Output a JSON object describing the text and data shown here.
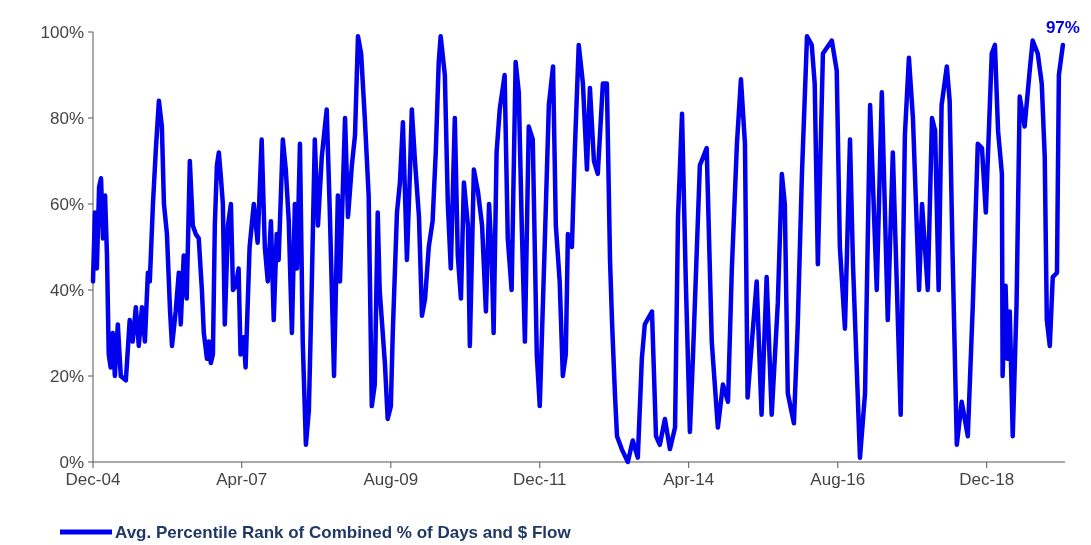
{
  "chart_data": {
    "type": "line",
    "legend": "bottom left",
    "grid": false,
    "line_style": "solid",
    "marker": "none",
    "xlim": [
      "2004-12",
      "2020-02-22"
    ],
    "xticks": [
      {
        "value": "2004-12",
        "label": "Dec-04"
      },
      {
        "value": "2007-04",
        "label": "Apr-07"
      },
      {
        "value": "2009-08",
        "label": "Aug-09"
      },
      {
        "value": "2011-12",
        "label": "Dec-11"
      },
      {
        "value": "2014-04",
        "label": "Apr-14"
      },
      {
        "value": "2016-08",
        "label": "Aug-16"
      },
      {
        "value": "2018-12",
        "label": "Dec-18"
      }
    ],
    "ylim": [
      0,
      100
    ],
    "yticks": [
      {
        "value": 0,
        "label": "0%"
      },
      {
        "value": 20,
        "label": "20%"
      },
      {
        "value": 40,
        "label": "40%"
      },
      {
        "value": 60,
        "label": "60%"
      },
      {
        "value": 80,
        "label": "80%"
      },
      {
        "value": 100,
        "label": "100%"
      }
    ],
    "annotations": [
      {
        "text": "97%",
        "x": "2020-02-10",
        "y": 97
      }
    ],
    "series": [
      {
        "name": "Avg. Percentile Rank of Combined % of Days and $ Flow",
        "color": "#0000ee",
        "x": [
          "2004-12-01",
          "2004-12-12",
          "2004-12-23",
          "2005-01-05",
          "2005-01-16",
          "2005-01-27",
          "2005-02-08",
          "2005-02-19",
          "2005-03-01",
          "2005-03-12",
          "2005-03-24",
          "2005-04-05",
          "2005-04-22",
          "2005-05-09",
          "2005-06-07",
          "2005-06-29",
          "2005-07-16",
          "2005-08-03",
          "2005-08-20",
          "2005-09-07",
          "2005-09-24",
          "2005-10-11",
          "2005-10-22",
          "2005-11-09",
          "2005-11-26",
          "2005-12-13",
          "2005-12-30",
          "2006-01-11",
          "2006-01-28",
          "2006-02-15",
          "2006-02-26",
          "2006-03-19",
          "2006-04-06",
          "2006-04-17",
          "2006-05-04",
          "2006-05-21",
          "2006-06-08",
          "2006-06-25",
          "2006-07-12",
          "2006-07-29",
          "2006-08-16",
          "2006-08-27",
          "2006-09-14",
          "2006-09-25",
          "2006-10-06",
          "2006-10-18",
          "2006-10-29",
          "2006-11-10",
          "2006-11-21",
          "2006-12-03",
          "2006-12-14",
          "2006-12-25",
          "2007-01-12",
          "2007-01-29",
          "2007-02-10",
          "2007-02-26",
          "2007-03-14",
          "2007-03-25",
          "2007-04-12",
          "2007-04-23",
          "2007-05-16",
          "2007-06-09",
          "2007-07-01",
          "2007-07-24",
          "2007-08-11",
          "2007-08-28",
          "2007-09-15",
          "2007-10-01",
          "2007-10-18",
          "2007-10-29",
          "2007-11-22",
          "2007-12-09",
          "2007-12-26",
          "2008-01-13",
          "2008-01-30",
          "2008-02-11",
          "2008-02-28",
          "2008-03-15",
          "2008-04-02",
          "2008-04-19",
          "2008-05-06",
          "2008-05-23",
          "2008-06-10",
          "2008-07-02",
          "2008-07-30",
          "2008-08-17",
          "2008-09-10",
          "2008-10-02",
          "2008-10-14",
          "2008-11-12",
          "2008-11-29",
          "2008-12-21",
          "2009-01-08",
          "2009-01-25",
          "2009-02-12",
          "2009-03-05",
          "2009-03-27",
          "2009-04-14",
          "2009-05-01",
          "2009-05-18",
          "2009-05-29",
          "2009-06-28",
          "2009-07-14",
          "2009-08-01",
          "2009-08-12",
          "2009-09-05",
          "2009-09-22",
          "2009-10-09",
          "2009-11-01",
          "2009-11-18",
          "2009-11-29",
          "2009-12-17",
          "2010-01-09",
          "2010-01-26",
          "2010-02-13",
          "2010-03-06",
          "2010-03-28",
          "2010-04-15",
          "2010-05-02",
          "2010-05-13",
          "2010-06-06",
          "2010-06-23",
          "2010-07-10",
          "2010-08-02",
          "2010-08-19",
          "2010-09-06",
          "2010-09-23",
          "2010-10-16",
          "2010-10-27",
          "2010-11-19",
          "2010-12-12",
          "2011-01-05",
          "2011-01-27",
          "2011-02-14",
          "2011-03-01",
          "2011-03-12",
          "2011-03-29",
          "2011-04-16",
          "2011-05-14",
          "2011-06-01",
          "2011-06-23",
          "2011-07-16",
          "2011-08-03",
          "2011-08-20",
          "2011-09-07",
          "2011-09-29",
          "2011-10-22",
          "2011-11-14",
          "2011-12-01",
          "2011-12-29",
          "2012-01-22",
          "2012-02-15",
          "2012-03-02",
          "2012-03-24",
          "2012-04-11",
          "2012-04-28",
          "2012-05-10",
          "2012-06-02",
          "2012-06-19",
          "2012-07-11",
          "2012-08-04",
          "2012-08-27",
          "2012-09-13",
          "2012-10-06",
          "2012-10-28",
          "2012-11-26",
          "2012-12-19",
          "2013-01-06",
          "2013-01-18",
          "2013-02-04",
          "2013-02-15",
          "2013-03-14",
          "2013-04-18",
          "2013-05-16",
          "2013-06-14",
          "2013-07-07",
          "2013-07-24",
          "2013-09-03",
          "2013-09-26",
          "2013-10-18",
          "2013-11-16",
          "2013-12-15",
          "2014-01-13",
          "2014-01-30",
          "2014-02-22",
          "2014-03-15",
          "2014-04-08",
          "2014-04-25",
          "2014-06-04",
          "2014-07-13",
          "2014-08-11",
          "2014-09-15",
          "2014-10-14",
          "2014-11-12",
          "2014-12-04",
          "2015-01-02",
          "2015-01-25",
          "2015-02-17",
          "2015-03-04",
          "2015-03-27",
          "2015-04-25",
          "2015-05-23",
          "2015-06-21",
          "2015-07-20",
          "2015-08-24",
          "2015-09-16",
          "2015-10-03",
          "2015-10-20",
          "2015-11-24",
          "2015-12-16",
          "2016-01-09",
          "2016-02-07",
          "2016-03-05",
          "2016-03-22",
          "2016-04-09",
          "2016-05-08",
          "2016-06-28",
          "2016-07-26",
          "2016-08-13",
          "2016-09-11",
          "2016-10-10",
          "2016-10-27",
          "2016-12-06",
          "2017-01-04",
          "2017-02-02",
          "2017-03-12",
          "2017-04-10",
          "2017-05-14",
          "2017-06-12",
          "2017-07-27",
          "2017-08-20",
          "2017-09-12",
          "2017-10-05",
          "2017-11-09",
          "2017-11-26",
          "2017-12-29",
          "2018-01-22",
          "2018-02-09",
          "2018-03-01",
          "2018-03-18",
          "2018-04-17",
          "2018-05-03",
          "2018-05-20",
          "2018-06-13",
          "2018-07-11",
          "2018-08-15",
          "2018-09-13",
          "2018-10-11",
          "2018-11-04",
          "2018-11-26",
          "2018-12-30",
          "2019-01-17",
          "2019-02-04",
          "2019-02-26",
          "2019-03-02",
          "2019-03-19",
          "2019-03-30",
          "2019-04-12",
          "2019-04-29",
          "2019-05-21",
          "2019-06-08",
          "2019-07-06",
          "2019-08-04",
          "2019-08-21",
          "2019-09-19",
          "2019-10-12",
          "2019-10-29",
          "2019-11-10",
          "2019-11-27",
          "2019-12-14",
          "2020-01-07",
          "2020-01-18",
          "2020-02-10"
        ],
        "values": [
          42,
          58,
          45,
          64,
          66,
          52,
          62,
          48,
          25,
          22,
          30,
          20,
          32,
          20,
          19,
          33,
          28,
          36,
          27,
          36,
          28,
          44,
          42,
          60,
          73,
          84,
          78,
          60,
          53,
          35,
          27,
          35,
          44,
          32,
          48,
          38,
          70,
          55,
          53,
          52,
          40,
          30,
          24,
          28,
          23,
          25,
          55,
          69,
          72,
          66,
          60,
          32,
          55,
          60,
          40,
          41,
          45,
          25,
          29,
          22,
          50,
          60,
          51,
          75,
          50,
          42,
          56,
          33,
          53,
          47,
          75,
          68,
          56,
          30,
          60,
          45,
          74,
          28,
          4,
          12,
          42,
          75,
          55,
          71,
          82,
          58,
          20,
          62,
          42,
          80,
          57,
          69,
          76,
          99,
          95,
          80,
          62,
          13,
          18,
          58,
          40,
          23,
          10,
          13,
          30,
          58,
          65,
          79,
          47,
          67,
          82,
          70,
          57,
          34,
          38,
          50,
          56,
          72,
          93,
          99,
          90,
          60,
          45,
          80,
          48,
          38,
          65,
          55,
          27,
          68,
          63,
          55,
          35,
          60,
          48,
          30,
          72,
          82,
          90,
          52,
          40,
          93,
          86,
          55,
          28,
          78,
          75,
          25,
          13,
          50,
          83,
          92,
          55,
          42,
          20,
          25,
          53,
          50,
          73,
          97,
          88,
          68,
          87,
          70,
          67,
          88,
          88,
          47,
          32,
          15,
          6,
          3,
          0,
          5,
          1,
          24,
          32,
          35,
          6,
          4,
          10,
          3,
          8,
          57,
          81,
          43,
          7,
          24,
          69,
          73,
          28,
          8,
          18,
          14,
          45,
          74,
          89,
          74,
          15,
          27,
          42,
          11,
          43,
          11,
          37,
          67,
          60,
          16,
          9,
          32,
          67,
          99,
          97,
          88,
          46,
          95,
          98,
          91,
          50,
          31,
          75,
          46,
          1,
          16,
          83,
          40,
          86,
          33,
          72,
          11,
          76,
          94,
          80,
          40,
          60,
          40,
          80,
          77,
          40,
          83,
          92,
          84,
          48,
          4,
          14,
          6,
          37,
          74,
          73,
          58,
          95,
          97,
          77,
          67,
          20,
          41,
          24,
          35,
          6,
          37,
          85,
          78,
          91,
          98,
          95,
          88,
          71,
          33,
          27,
          43,
          44,
          90,
          97
        ]
      }
    ]
  }
}
